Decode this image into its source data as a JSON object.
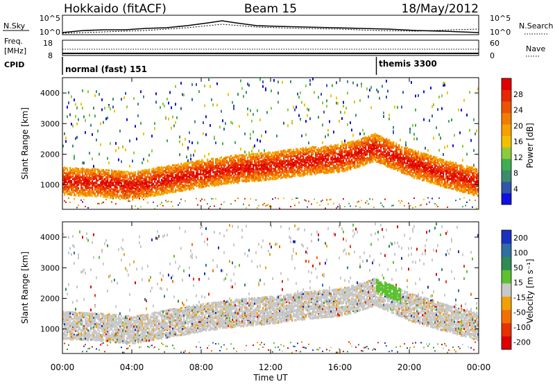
{
  "header": {
    "station": "Hokkaido (fitACF)",
    "beam": "Beam 15",
    "date": "18/May/2012"
  },
  "noise_panel": {
    "left_label": "N.Sky",
    "right_label": "N.Search",
    "left_ticks": [
      "10^5",
      "10^0"
    ],
    "right_ticks": [
      "10^5",
      "10^0"
    ]
  },
  "freq_panel": {
    "left_label_1": "Freq.",
    "left_label_2": "[MHz]",
    "right_label": "Nave",
    "left_ticks": [
      "18",
      "8"
    ],
    "right_ticks": [
      "60",
      "0"
    ]
  },
  "cpid_panel": {
    "label": "CPID",
    "segments": [
      {
        "name": "normal (fast) 151",
        "start_hour": 0
      },
      {
        "name": "themis 3300",
        "start_hour": 18.1
      }
    ]
  },
  "chart_data": [
    {
      "type": "heatmap",
      "title": "Power",
      "xlabel": "",
      "ylabel": "Slant Range [km]",
      "x_ticks": [
        "00:00",
        "04:00",
        "08:00",
        "12:00",
        "16:00",
        "20:00",
        "00:00"
      ],
      "y_ticks": [
        "1000",
        "2000",
        "3000",
        "4000"
      ],
      "xlim": [
        0,
        24
      ],
      "ylim": [
        200,
        4500
      ],
      "colorbar": {
        "label": "Power [dB]",
        "ticks": [
          "4",
          "8",
          "12",
          "16",
          "20",
          "24",
          "28"
        ],
        "colors": [
          "#1010e0",
          "#3355aa",
          "#3d8a6e",
          "#3fae52",
          "#8dcb3a",
          "#f2c000",
          "#f7a000",
          "#f27d00",
          "#ee5300",
          "#e82800",
          "#e00000"
        ]
      },
      "bands": [
        {
          "hours": [
            0,
            2,
            4,
            6,
            8,
            10,
            12,
            14,
            16,
            17,
            18,
            19,
            20,
            22,
            24
          ],
          "range_km": [
            1150,
            1100,
            1000,
            1200,
            1400,
            1550,
            1650,
            1800,
            1900,
            2050,
            2250,
            2000,
            1750,
            1400,
            1100
          ],
          "level": "high"
        }
      ]
    },
    {
      "type": "heatmap",
      "title": "Velocity",
      "xlabel": "Time UT",
      "ylabel": "Slant Range [km]",
      "x_ticks": [
        "00:00",
        "04:00",
        "08:00",
        "12:00",
        "16:00",
        "20:00",
        "00:00"
      ],
      "y_ticks": [
        "1000",
        "2000",
        "3000",
        "4000"
      ],
      "xlim": [
        0,
        24
      ],
      "ylim": [
        200,
        4500
      ],
      "colorbar": {
        "label": "Velocity [m s⁻¹]",
        "ticks": [
          "200",
          "100",
          "50",
          "15",
          "-15",
          "-50",
          "-100",
          "-200"
        ],
        "colors": [
          "#1a30c0",
          "#2f6ea0",
          "#2f8a55",
          "#5cc030",
          "#c8c8c8",
          "#f2a000",
          "#f27000",
          "#e83000",
          "#dd0000"
        ]
      },
      "bands": [
        {
          "hours": [
            0,
            2,
            4,
            6,
            8,
            10,
            12,
            14,
            16,
            17,
            18,
            19,
            20,
            22,
            24
          ],
          "range_km": [
            1150,
            1100,
            1000,
            1200,
            1400,
            1550,
            1650,
            1800,
            1900,
            2050,
            2250,
            2000,
            1750,
            1400,
            1100
          ],
          "level": "ground"
        }
      ]
    }
  ]
}
